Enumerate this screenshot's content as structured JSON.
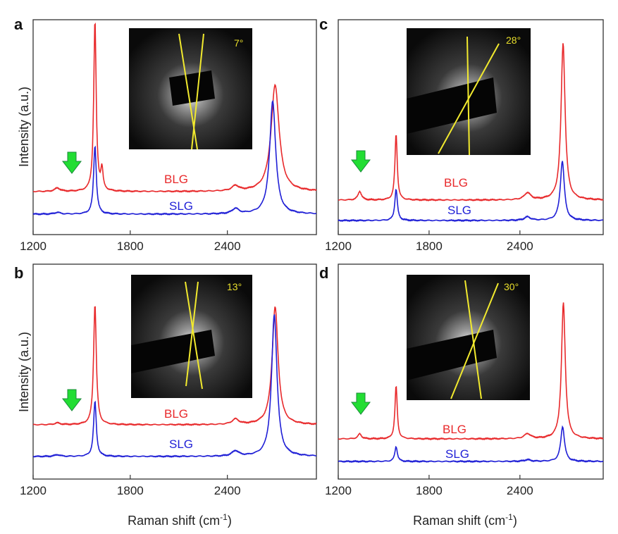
{
  "figure": {
    "ylabel": "Intensity (a.u.)",
    "xlabel": "Raman shift (cm",
    "xlabel_sup": "-1",
    "xlabel_end": ")"
  },
  "colors": {
    "blg": "#e8292b",
    "slg": "#1f1fd6",
    "arrow": "#22dd33",
    "inset_lines": "#f2ea2e",
    "angle_text": "#e9df2c"
  },
  "chart_data": [
    {
      "panel": "a",
      "type": "line",
      "xlim": [
        1200,
        2950
      ],
      "xticks": [
        1200,
        1800,
        2400
      ],
      "inset_angle": "7°",
      "series": [
        {
          "name": "BLG",
          "peaks": [
            {
              "x": 1350,
              "h": 0.02,
              "w": 20
            },
            {
              "x": 1582,
              "h": 1.0,
              "w": 9
            },
            {
              "x": 1625,
              "h": 0.12,
              "w": 8
            },
            {
              "x": 2450,
              "h": 0.03,
              "w": 25
            },
            {
              "x": 2695,
              "h": 0.62,
              "w": 30
            }
          ]
        },
        {
          "name": "SLG",
          "peaks": [
            {
              "x": 1350,
              "h": 0.01,
              "w": 20
            },
            {
              "x": 1582,
              "h": 0.4,
              "w": 10
            },
            {
              "x": 2450,
              "h": 0.03,
              "w": 25
            },
            {
              "x": 2680,
              "h": 0.66,
              "w": 22
            }
          ]
        }
      ]
    },
    {
      "panel": "c",
      "type": "line",
      "xlim": [
        1200,
        2950
      ],
      "xticks": [
        1200,
        1800,
        2400
      ],
      "inset_angle": "28°",
      "series": [
        {
          "name": "BLG",
          "peaks": [
            {
              "x": 1342,
              "h": 0.05,
              "w": 14
            },
            {
              "x": 1582,
              "h": 0.38,
              "w": 9
            },
            {
              "x": 2450,
              "h": 0.04,
              "w": 25
            },
            {
              "x": 2685,
              "h": 0.9,
              "w": 16
            }
          ]
        },
        {
          "name": "SLG",
          "peaks": [
            {
              "x": 1342,
              "h": 0.0,
              "w": 14
            },
            {
              "x": 1582,
              "h": 0.18,
              "w": 10
            },
            {
              "x": 2450,
              "h": 0.02,
              "w": 25
            },
            {
              "x": 2680,
              "h": 0.34,
              "w": 16
            }
          ]
        }
      ]
    },
    {
      "panel": "b",
      "type": "line",
      "xlim": [
        1200,
        2950
      ],
      "xticks": [
        1200,
        1800,
        2400
      ],
      "inset_angle": "13°",
      "series": [
        {
          "name": "BLG",
          "peaks": [
            {
              "x": 1350,
              "h": 0.01,
              "w": 20
            },
            {
              "x": 1582,
              "h": 0.7,
              "w": 10
            },
            {
              "x": 2450,
              "h": 0.03,
              "w": 25
            },
            {
              "x": 2695,
              "h": 0.68,
              "w": 22
            }
          ]
        },
        {
          "name": "SLG",
          "peaks": [
            {
              "x": 1350,
              "h": 0.01,
              "w": 20
            },
            {
              "x": 1582,
              "h": 0.32,
              "w": 10
            },
            {
              "x": 2450,
              "h": 0.03,
              "w": 25
            },
            {
              "x": 2690,
              "h": 0.82,
              "w": 20
            }
          ]
        }
      ]
    },
    {
      "panel": "d",
      "type": "line",
      "xlim": [
        1200,
        2950
      ],
      "xticks": [
        1200,
        1800,
        2400
      ],
      "inset_angle": "30°",
      "series": [
        {
          "name": "BLG",
          "peaks": [
            {
              "x": 1342,
              "h": 0.03,
              "w": 14
            },
            {
              "x": 1582,
              "h": 0.32,
              "w": 9
            },
            {
              "x": 2450,
              "h": 0.03,
              "w": 25
            },
            {
              "x": 2687,
              "h": 0.82,
              "w": 15
            }
          ]
        },
        {
          "name": "SLG",
          "peaks": [
            {
              "x": 1342,
              "h": 0.0,
              "w": 14
            },
            {
              "x": 1582,
              "h": 0.09,
              "w": 10
            },
            {
              "x": 2450,
              "h": 0.01,
              "w": 25
            },
            {
              "x": 2682,
              "h": 0.21,
              "w": 15
            }
          ]
        }
      ]
    }
  ]
}
